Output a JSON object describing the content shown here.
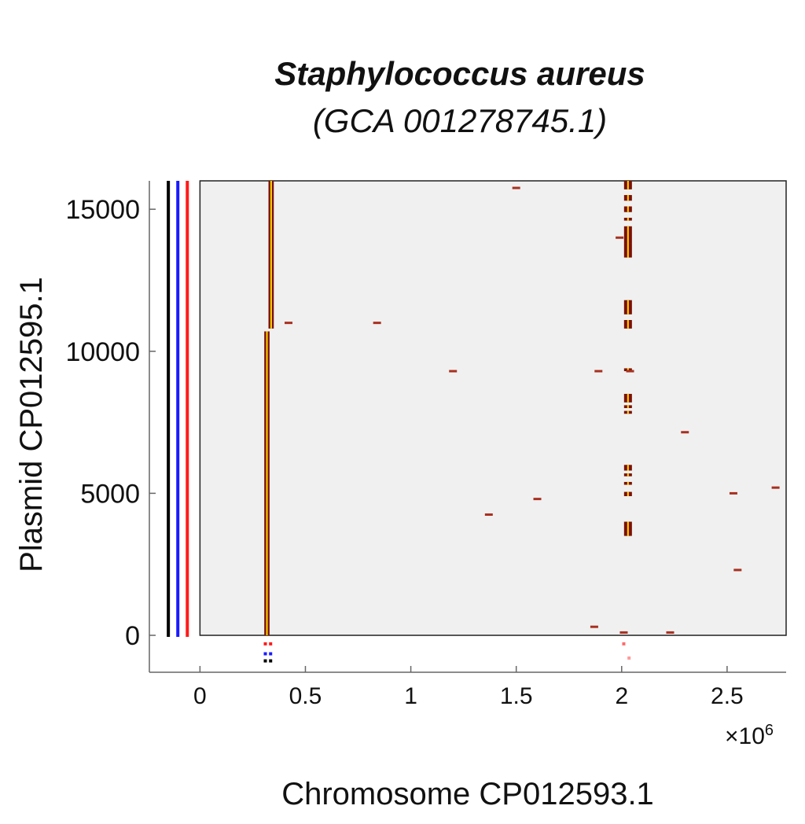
{
  "title_line1": "Staphylococcus aureus",
  "title_line2": "(GCA 001278745.1)",
  "chart_data": {
    "type": "scatter",
    "subtype": "dot-plot",
    "xlabel": "Chromosome CP012593.1",
    "ylabel": "Plasmid CP012595.1",
    "x_multiplier_label": "×10",
    "x_multiplier_exp": "6",
    "xlim": [
      -0.24,
      2.78
    ],
    "ylim": [
      -1300,
      16000
    ],
    "xticks": [
      0,
      0.5,
      1,
      1.5,
      2,
      2.5
    ],
    "xtick_labels": [
      "0",
      "0.5",
      "1",
      "1.5",
      "2",
      "2.5"
    ],
    "yticks": [
      0,
      5000,
      10000,
      15000
    ],
    "ytick_labels": [
      "0",
      "5000",
      "10000",
      "15000"
    ],
    "strand_lines": [
      {
        "x": -0.15,
        "color": "#000000"
      },
      {
        "x": -0.105,
        "color": "#1a1aff"
      },
      {
        "x": -0.06,
        "color": "#ff1a1a"
      }
    ],
    "main_segments": [
      {
        "x0": 0.305,
        "x1": 0.33,
        "y0": 0,
        "y1": 10700
      },
      {
        "x0": 0.325,
        "x1": 0.35,
        "y0": 10800,
        "y1": 16000
      }
    ],
    "cluster_x": 2.03,
    "cluster_y_ranges": [
      [
        3500,
        4000
      ],
      [
        4900,
        5050
      ],
      [
        5300,
        5400
      ],
      [
        5600,
        5700
      ],
      [
        5800,
        6000
      ],
      [
        7800,
        7900
      ],
      [
        8000,
        8100
      ],
      [
        8200,
        8500
      ],
      [
        9300,
        9400
      ],
      [
        10800,
        11100
      ],
      [
        11300,
        11800
      ],
      [
        13300,
        13800
      ],
      [
        13800,
        14400
      ],
      [
        14600,
        14700
      ],
      [
        14900,
        15100
      ],
      [
        15300,
        15500
      ],
      [
        15700,
        16000
      ]
    ],
    "scattered_hits": [
      [
        0.42,
        11000
      ],
      [
        0.84,
        11000
      ],
      [
        1.2,
        9300
      ],
      [
        1.37,
        4250
      ],
      [
        1.5,
        15750
      ],
      [
        1.6,
        4800
      ],
      [
        1.89,
        9300
      ],
      [
        1.87,
        300
      ],
      [
        1.99,
        14000
      ],
      [
        2.01,
        100
      ],
      [
        2.04,
        9300
      ],
      [
        2.3,
        7150
      ],
      [
        2.23,
        100
      ],
      [
        2.53,
        5000
      ],
      [
        2.55,
        2300
      ],
      [
        2.73,
        5200
      ]
    ],
    "bottom_markers": [
      {
        "x": 0.31,
        "y": -300,
        "color": "#ff1a1a"
      },
      {
        "x": 0.31,
        "y": -650,
        "color": "#1a1aff"
      },
      {
        "x": 0.31,
        "y": -900,
        "color": "#000000"
      },
      {
        "x": 0.335,
        "y": -300,
        "color": "#ff1a1a"
      },
      {
        "x": 0.335,
        "y": -650,
        "color": "#1a1aff"
      },
      {
        "x": 0.335,
        "y": -900,
        "color": "#000000"
      },
      {
        "x": 2.01,
        "y": -300,
        "color": "#ff6a6a"
      },
      {
        "x": 2.035,
        "y": -800,
        "color": "#ff9a9a"
      }
    ],
    "colors": {
      "background_panel": "#f0f0f0",
      "hit_dark": "#7a1000",
      "hit_bright": "#ffd800",
      "axis": "#666666"
    }
  }
}
